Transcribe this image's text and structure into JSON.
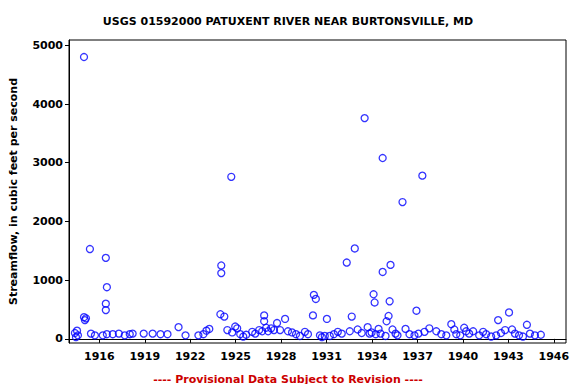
{
  "chart_data": {
    "type": "scatter",
    "title": "USGS 01592000 PATUXENT RIVER NEAR BURTONSVILLE, MD",
    "y_label": "Streamflow, in cubic feet per second",
    "annotation": "---- Provisional Data Subject to Revision ----",
    "color": "#0000ff",
    "marker": "open_circle",
    "grid": false,
    "xlim": [
      1914.0,
      1946.8
    ],
    "xticks": [
      1916,
      1919,
      1922,
      1925,
      1928,
      1931,
      1934,
      1937,
      1940,
      1943,
      1946
    ],
    "ylim": [
      -70,
      5090
    ],
    "yticks": [
      0,
      1000,
      2000,
      3000,
      4000,
      5000
    ],
    "x": [
      1914.39,
      1914.46,
      1914.53,
      1914.59,
      1914.99,
      1914.99,
      1915.05,
      1915.12,
      1915.38,
      1915.45,
      1915.71,
      1916.23,
      1916.43,
      1916.5,
      1916.43,
      1916.43,
      1916.5,
      1916.89,
      1917.29,
      1917.68,
      1918.01,
      1918.2,
      1918.93,
      1919.52,
      1920.04,
      1920.5,
      1921.23,
      1921.69,
      1922.54,
      1922.87,
      1923.07,
      1923.26,
      1924.05,
      1924.05,
      1923.99,
      1924.25,
      1924.45,
      1924.71,
      1924.77,
      1924.97,
      1925.1,
      1925.3,
      1925.5,
      1925.69,
      1926.09,
      1926.29,
      1926.55,
      1926.75,
      1926.88,
      1926.88,
      1927.01,
      1927.14,
      1927.34,
      1927.53,
      1927.73,
      1927.93,
      1928.26,
      1928.45,
      1928.72,
      1928.98,
      1929.24,
      1929.57,
      1929.77,
      1930.1,
      1930.16,
      1930.29,
      1930.56,
      1930.69,
      1930.88,
      1931.02,
      1931.21,
      1931.48,
      1931.74,
      1932.0,
      1932.33,
      1932.53,
      1932.66,
      1932.86,
      1933.05,
      1933.32,
      1933.51,
      1933.71,
      1933.84,
      1933.97,
      1934.1,
      1934.17,
      1934.24,
      1934.43,
      1934.56,
      1934.7,
      1934.7,
      1934.89,
      1934.96,
      1935.09,
      1935.16,
      1935.22,
      1935.35,
      1935.55,
      1935.68,
      1936.01,
      1936.21,
      1936.47,
      1936.8,
      1936.93,
      1937.06,
      1937.32,
      1937.46,
      1937.78,
      1938.24,
      1938.57,
      1938.9,
      1939.23,
      1939.43,
      1939.56,
      1939.82,
      1940.08,
      1940.21,
      1940.41,
      1940.67,
      1941.07,
      1941.33,
      1941.53,
      1941.86,
      1942.19,
      1942.32,
      1942.51,
      1942.78,
      1943.04,
      1943.24,
      1943.43,
      1943.7,
      1943.96,
      1944.22,
      1944.42,
      1944.75,
      1945.14
    ],
    "values": [
      100,
      30,
      140,
      60,
      4800,
      370,
      320,
      350,
      1530,
      90,
      60,
      60,
      1380,
      880,
      600,
      490,
      80,
      80,
      90,
      60,
      80,
      90,
      90,
      90,
      80,
      80,
      200,
      60,
      60,
      80,
      140,
      170,
      1250,
      1120,
      420,
      380,
      150,
      2760,
      110,
      210,
      180,
      80,
      40,
      70,
      120,
      90,
      150,
      130,
      400,
      300,
      190,
      130,
      180,
      150,
      270,
      150,
      340,
      130,
      110,
      80,
      50,
      120,
      80,
      400,
      750,
      680,
      60,
      30,
      50,
      340,
      50,
      80,
      120,
      90,
      1300,
      130,
      380,
      1540,
      160,
      100,
      3760,
      200,
      90,
      110,
      760,
      620,
      80,
      170,
      90,
      3080,
      1140,
      50,
      300,
      390,
      640,
      1260,
      160,
      90,
      60,
      2330,
      170,
      80,
      60,
      480,
      90,
      2780,
      120,
      180,
      130,
      80,
      60,
      250,
      160,
      80,
      60,
      190,
      130,
      90,
      130,
      60,
      120,
      80,
      40,
      60,
      320,
      100,
      150,
      450,
      160,
      90,
      60,
      40,
      240,
      90,
      60,
      70
    ]
  }
}
